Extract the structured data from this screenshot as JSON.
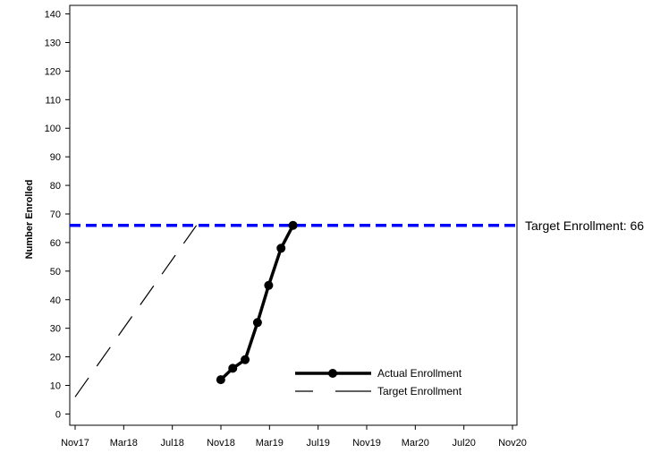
{
  "chart_data": {
    "type": "line",
    "title": "",
    "xlabel": "",
    "ylabel": "Number Enrolled",
    "x_tick_labels": [
      "Nov17",
      "Mar18",
      "Jul18",
      "Nov18",
      "Mar19",
      "Jul19",
      "Nov19",
      "Mar20",
      "Jul20",
      "Nov20"
    ],
    "y_ticks": [
      0,
      10,
      20,
      30,
      40,
      50,
      60,
      70,
      80,
      90,
      100,
      110,
      120,
      130,
      140
    ],
    "xlim": [
      "2017-11-01",
      "2020-11-01"
    ],
    "ylim": [
      -3,
      143
    ],
    "grid": false,
    "legend_position": "bottom-right",
    "series": [
      {
        "name": "Actual Enrollment",
        "color": "#000000",
        "style": "solid-with-markers",
        "points": [
          {
            "x": "2018-11-01",
            "y": 12
          },
          {
            "x": "2018-12-01",
            "y": 16
          },
          {
            "x": "2019-01-01",
            "y": 19
          },
          {
            "x": "2019-02-01",
            "y": 32
          },
          {
            "x": "2019-03-01",
            "y": 45
          },
          {
            "x": "2019-04-01",
            "y": 58
          },
          {
            "x": "2019-05-01",
            "y": 66
          }
        ]
      },
      {
        "name": "Target Enrollment",
        "color": "#000000",
        "style": "long-dash",
        "points": [
          {
            "x": "2017-11-01",
            "y": 6
          },
          {
            "x": "2018-09-01",
            "y": 66
          }
        ]
      }
    ],
    "reference_line": {
      "y": 66,
      "label": "Target Enrollment: 66",
      "color": "#0000ff",
      "style": "dashed"
    }
  }
}
